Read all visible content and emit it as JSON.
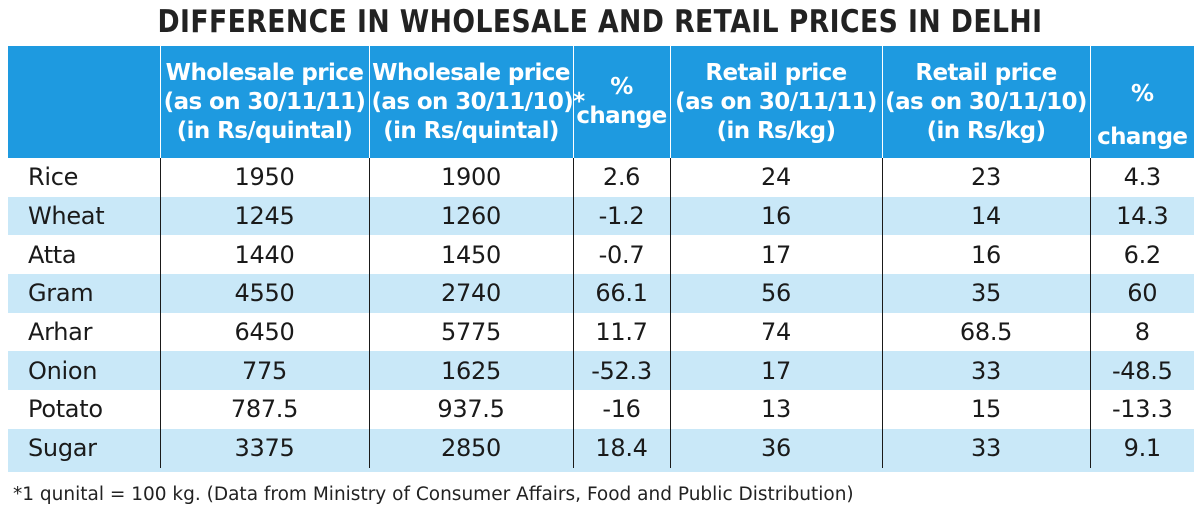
{
  "title": "DIFFERENCE IN WHOLESALE AND RETAIL PRICES IN DELHI",
  "header": {
    "commodity": "",
    "wholesale_2011": [
      "Wholesale price",
      "(as on 30/11/11)",
      "(in Rs/quintal)"
    ],
    "wholesale_2010": [
      "Wholesale price",
      "(as on 30/11/10)*",
      "(in Rs/quintal)"
    ],
    "wholesale_change": [
      "%",
      "change"
    ],
    "retail_2011": [
      "Retail price",
      "(as on 30/11/11)",
      "(in Rs/kg)"
    ],
    "retail_2010": [
      "Retail price",
      "(as on 30/11/10)",
      "(in Rs/kg)"
    ],
    "retail_change": [
      "%",
      "change"
    ]
  },
  "rows": [
    {
      "item": "Rice",
      "w11": "1950",
      "w10": "1900",
      "wchg": "2.6",
      "r11": "24",
      "r10": "23",
      "rchg": "4.3"
    },
    {
      "item": "Wheat",
      "w11": "1245",
      "w10": "1260",
      "wchg": "-1.2",
      "r11": "16",
      "r10": "14",
      "rchg": "14.3"
    },
    {
      "item": "Atta",
      "w11": "1440",
      "w10": "1450",
      "wchg": "-0.7",
      "r11": "17",
      "r10": "16",
      "rchg": "6.2"
    },
    {
      "item": "Gram",
      "w11": "4550",
      "w10": "2740",
      "wchg": "66.1",
      "r11": "56",
      "r10": "35",
      "rchg": "60"
    },
    {
      "item": "Arhar",
      "w11": "6450",
      "w10": "5775",
      "wchg": "11.7",
      "r11": "74",
      "r10": "68.5",
      "rchg": "8"
    },
    {
      "item": "Onion",
      "w11": "775",
      "w10": "1625",
      "wchg": "-52.3",
      "r11": "17",
      "r10": "33",
      "rchg": "-48.5"
    },
    {
      "item": "Potato",
      "w11": "787.5",
      "w10": "937.5",
      "wchg": "-16",
      "r11": "13",
      "r10": "15",
      "rchg": "-13.3"
    },
    {
      "item": "Sugar",
      "w11": "3375",
      "w10": "2850",
      "wchg": "18.4",
      "r11": "36",
      "r10": "33",
      "rchg": "9.1"
    }
  ],
  "footnote": "*1 qunital = 100 kg.  (Data from Ministry of Consumer Affairs, Food and Public Distribution)",
  "colors": {
    "header_bg": "#1e9ae0",
    "row_alt_bg": "#c9e8f8",
    "row_bg": "#ffffff",
    "header_text": "#ffffff"
  },
  "chart_data": {
    "type": "table",
    "title": "DIFFERENCE IN WHOLESALE AND RETAIL PRICES IN DELHI",
    "columns": [
      "",
      "Wholesale price (as on 30/11/11) (in Rs/quintal)",
      "Wholesale price (as on 30/11/10)* (in Rs/quintal)",
      "% change",
      "Retail price (as on 30/11/11) (in Rs/kg)",
      "Retail price (as on 30/11/10) (in Rs/kg)",
      "% change"
    ],
    "rows": [
      [
        "Rice",
        1950,
        1900,
        2.6,
        24,
        23,
        4.3
      ],
      [
        "Wheat",
        1245,
        1260,
        -1.2,
        16,
        14,
        14.3
      ],
      [
        "Atta",
        1440,
        1450,
        -0.7,
        17,
        16,
        6.2
      ],
      [
        "Gram",
        4550,
        2740,
        66.1,
        56,
        35,
        60
      ],
      [
        "Arhar",
        6450,
        5775,
        11.7,
        74,
        68.5,
        8
      ],
      [
        "Onion",
        775,
        1625,
        -52.3,
        17,
        33,
        -48.5
      ],
      [
        "Potato",
        787.5,
        937.5,
        -16,
        13,
        15,
        -13.3
      ],
      [
        "Sugar",
        3375,
        2850,
        18.4,
        36,
        33,
        9.1
      ]
    ]
  }
}
